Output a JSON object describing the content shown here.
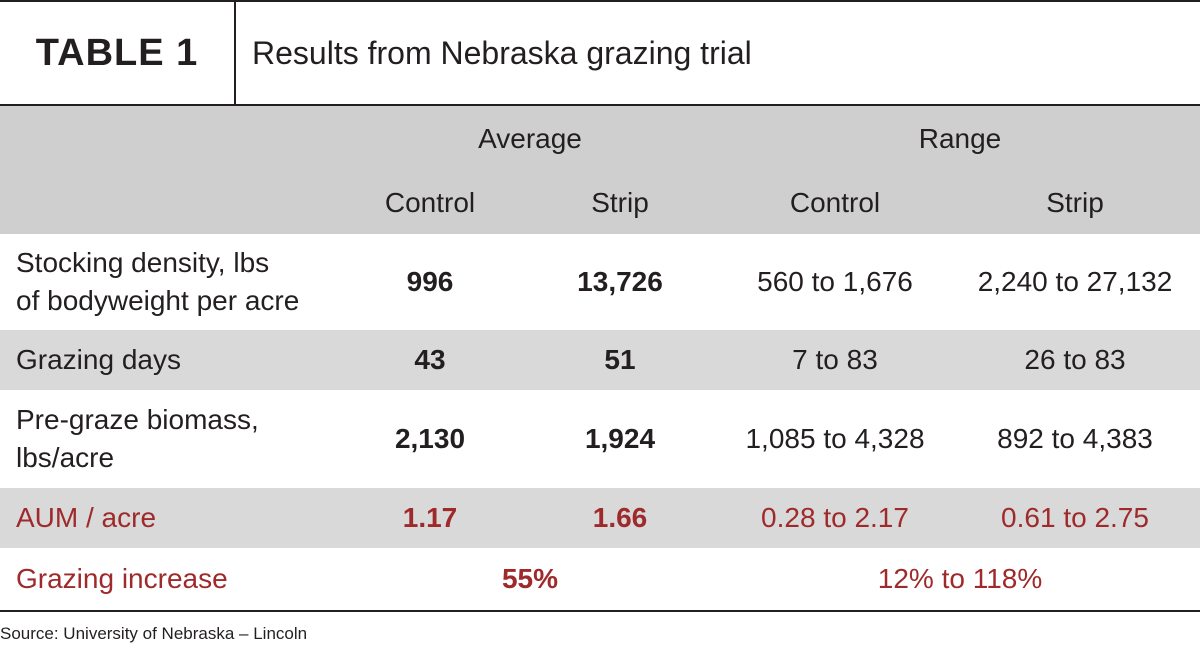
{
  "table": {
    "label": "TABLE 1",
    "title": "Results from Nebraska grazing trial"
  },
  "header": {
    "group_average": "Average",
    "group_range": "Range",
    "avg_control": "Control",
    "avg_strip": "Strip",
    "range_control": "Control",
    "range_strip": "Strip"
  },
  "rows": [
    {
      "label": "Stocking density, lbs of bodyweight per acre",
      "label_line1": "Stocking density, lbs",
      "label_line2": "of bodyweight per acre",
      "avg_control": "996",
      "avg_strip": "13,726",
      "range_control": "560 to 1,676",
      "range_strip": "2,240 to 27,132"
    },
    {
      "label": "Grazing days",
      "avg_control": "43",
      "avg_strip": "51",
      "range_control": "7 to 83",
      "range_strip": "26 to 83"
    },
    {
      "label": "Pre-graze biomass, lbs/acre",
      "label_line1": "Pre-graze biomass,",
      "label_line2": "lbs/acre",
      "avg_control": "2,130",
      "avg_strip": "1,924",
      "range_control": "1,085 to 4,328",
      "range_strip": "892 to 4,383"
    },
    {
      "label": "AUM / acre",
      "avg_control": "1.17",
      "avg_strip": "1.66",
      "range_control": "0.28 to 2.17",
      "range_strip": "0.61 to 2.75"
    },
    {
      "label": "Grazing increase",
      "average": "55%",
      "range": "12% to 118%"
    }
  ],
  "source": "Source: University of Nebraska – Lincoln",
  "colors": {
    "text": "#231f20",
    "accent_red": "#9e2a2b",
    "header_gray": "#cfcfcf",
    "stripe_gray": "#d9d9d9"
  }
}
